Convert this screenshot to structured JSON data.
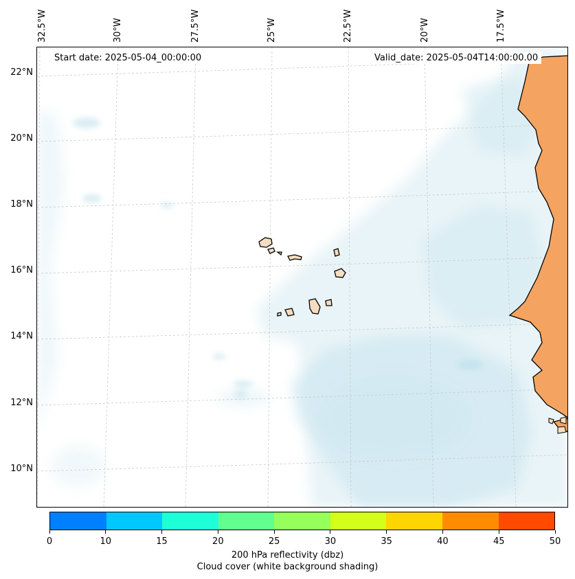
{
  "header": {
    "start_date": "Start date: 2025-05-04_00:00:00",
    "valid_date": "Valid_date: 2025-05-04T14:00:00.00"
  },
  "map": {
    "longitude_labels": [
      "32.5°W",
      "30°W",
      "27.5°W",
      "25°W",
      "22.5°W",
      "20°W",
      "17.5°W"
    ],
    "latitude_labels": [
      "22°N",
      "20°N",
      "18°N",
      "16°N",
      "14°N",
      "12°N",
      "10°N"
    ],
    "features": [
      "cape-verde-islands",
      "west-africa-coastline"
    ],
    "colors": {
      "cloud": "#add8e6",
      "land": "#f4a460",
      "island_fill": "#f6dcc0",
      "grid": "#c8c8c8"
    }
  },
  "colorbar": {
    "ticks": [
      "0",
      "10",
      "15",
      "20",
      "25",
      "30",
      "35",
      "40",
      "45",
      "50"
    ],
    "colors": [
      "#0080ff",
      "#00c8ff",
      "#1effd7",
      "#60ff90",
      "#96ff5a",
      "#d4ff1a",
      "#ffd500",
      "#ff8c00",
      "#ff4a00"
    ],
    "title_line1": "200 hPa reflectivity (dbz)",
    "title_line2": "Cloud cover (white background shading)"
  }
}
